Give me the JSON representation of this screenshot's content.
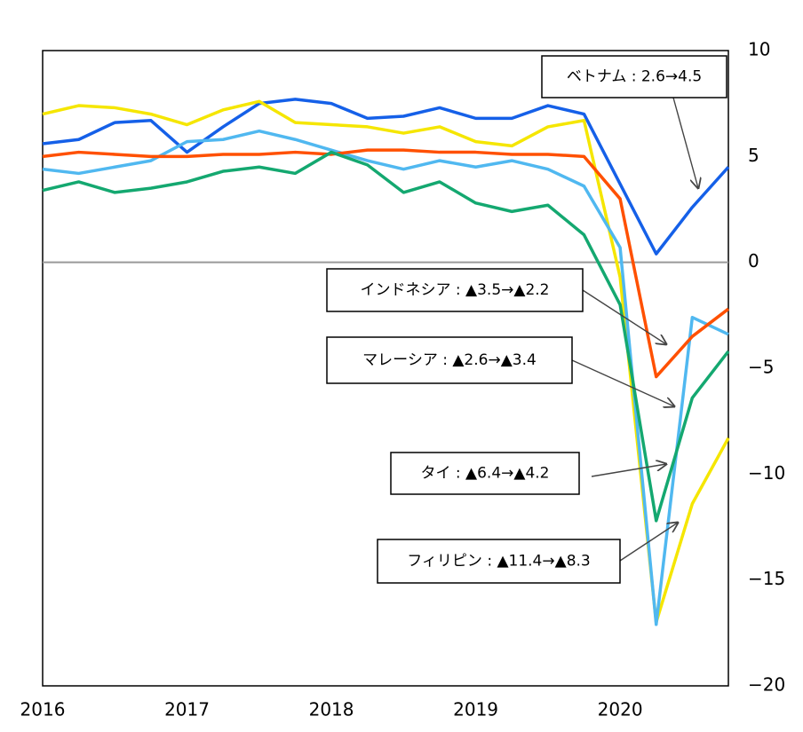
{
  "chart_data": {
    "type": "line",
    "categories": [
      "2016",
      null,
      null,
      null,
      "2017",
      null,
      null,
      null,
      "2018",
      null,
      null,
      null,
      "2019",
      null,
      null,
      null,
      "2020",
      null,
      null,
      null
    ],
    "series": [
      {
        "name": "Vietnam",
        "color": "#1560e8",
        "values": [
          5.6,
          5.8,
          6.6,
          6.7,
          5.2,
          6.4,
          7.5,
          7.7,
          7.5,
          6.8,
          6.9,
          7.3,
          6.8,
          6.8,
          7.4,
          7.0,
          3.7,
          0.4,
          2.6,
          4.5
        ]
      },
      {
        "name": "Philippines",
        "color": "#f5e600",
        "values": [
          7.0,
          7.4,
          7.3,
          7.0,
          6.5,
          7.2,
          7.6,
          6.6,
          6.5,
          6.4,
          6.1,
          6.4,
          5.7,
          5.5,
          6.4,
          6.7,
          -0.7,
          -17.0,
          -11.4,
          -8.3
        ]
      },
      {
        "name": "Malaysia",
        "color": "#50b8f0",
        "values": [
          4.4,
          4.2,
          4.5,
          4.8,
          5.7,
          5.8,
          6.2,
          5.8,
          5.3,
          4.8,
          4.4,
          4.8,
          4.5,
          4.8,
          4.4,
          3.6,
          0.7,
          -17.1,
          -2.6,
          -3.4
        ]
      },
      {
        "name": "Indonesia",
        "color": "#ff5000",
        "values": [
          5.0,
          5.2,
          5.1,
          5.0,
          5.0,
          5.1,
          5.1,
          5.2,
          5.1,
          5.3,
          5.3,
          5.2,
          5.2,
          5.1,
          5.1,
          5.0,
          3.0,
          -5.4,
          -3.5,
          -2.2
        ]
      },
      {
        "name": "Thailand",
        "color": "#14a870",
        "values": [
          3.4,
          3.8,
          3.3,
          3.5,
          3.8,
          4.3,
          4.5,
          4.2,
          5.2,
          4.6,
          3.3,
          3.8,
          2.8,
          2.4,
          2.7,
          1.3,
          -2.0,
          -12.2,
          -6.4,
          -4.2
        ]
      }
    ],
    "ylim": [
      -20,
      10
    ],
    "yticks": [
      10,
      5,
      0,
      {
        "value": -5,
        "label": "−5"
      },
      {
        "value": -10,
        "label": "−10"
      },
      {
        "value": -15,
        "label": "−15"
      },
      {
        "value": -20,
        "label": "−20"
      }
    ],
    "annotations": [
      {
        "text": "ベトナム : 2.6→4.5"
      },
      {
        "text": "インドネシア : ▲3.5→▲2.2"
      },
      {
        "text": "マレーシア : ▲2.6→▲3.4"
      },
      {
        "text": "タイ : ▲6.4→▲4.2"
      },
      {
        "text": "フィリピン : ▲11.4→▲8.3"
      }
    ]
  }
}
